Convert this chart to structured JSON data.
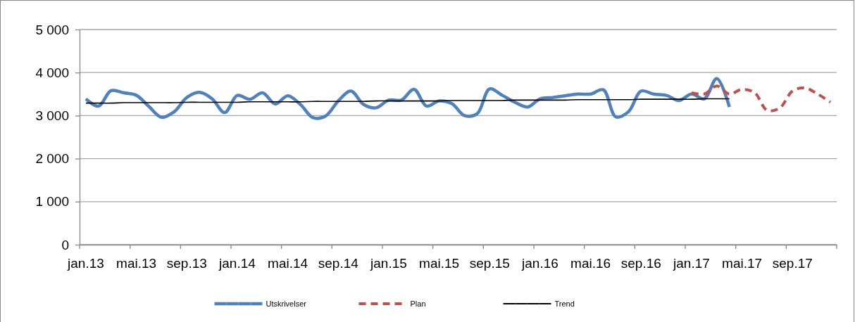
{
  "chart_data": {
    "type": "line",
    "categories": [
      "jan.13",
      null,
      null,
      null,
      "mai.13",
      null,
      null,
      null,
      "sep.13",
      null,
      null,
      null,
      "jan.14",
      null,
      null,
      null,
      "mai.14",
      null,
      null,
      null,
      "sep.14",
      null,
      null,
      null,
      "jan.15",
      null,
      null,
      null,
      "mai.15",
      null,
      null,
      null,
      "sep.15",
      null,
      null,
      null,
      "jan.16",
      null,
      null,
      null,
      "mai.16",
      null,
      null,
      null,
      "sep.16",
      null,
      null,
      null,
      "jan.17",
      null,
      null,
      null,
      "mai.17",
      null,
      null,
      null,
      "sep.17",
      null,
      null,
      null
    ],
    "ylim": [
      0,
      5000
    ],
    "yticks": [
      {
        "value": 0,
        "label": "0"
      },
      {
        "value": 1000,
        "label": "1 000"
      },
      {
        "value": 2000,
        "label": "2 000"
      },
      {
        "value": 3000,
        "label": "3 000"
      },
      {
        "value": 4000,
        "label": "4 000"
      },
      {
        "value": 5000,
        "label": "5 000"
      }
    ],
    "grid": "y",
    "legend": "bottom",
    "series": [
      {
        "name": "Utskrivelser",
        "color": "#4f81bd",
        "line_style": "solid",
        "values": [
          3390,
          3220,
          3580,
          3530,
          3470,
          3210,
          2960,
          3090,
          3420,
          3540,
          3390,
          3070,
          3470,
          3380,
          3530,
          3270,
          3460,
          3260,
          2950,
          2990,
          3340,
          3570,
          3260,
          3180,
          3360,
          3360,
          3610,
          3220,
          3340,
          3280,
          3000,
          3040,
          3620,
          3470,
          3310,
          3200,
          3390,
          3420,
          3460,
          3500,
          3500,
          3600,
          2970,
          3090,
          3570,
          3500,
          3470,
          3350,
          3500,
          3390,
          3860,
          3200,
          null,
          null,
          null,
          null,
          null,
          null,
          null,
          null
        ]
      },
      {
        "name": "Plan",
        "color": "#c0504d",
        "line_style": "dashed",
        "values": [
          null,
          null,
          null,
          null,
          null,
          null,
          null,
          null,
          null,
          null,
          null,
          null,
          null,
          null,
          null,
          null,
          null,
          null,
          null,
          null,
          null,
          null,
          null,
          null,
          null,
          null,
          null,
          null,
          null,
          null,
          null,
          null,
          null,
          null,
          null,
          null,
          null,
          null,
          null,
          null,
          null,
          null,
          null,
          null,
          null,
          null,
          null,
          null,
          3530,
          3500,
          3690,
          3500,
          3610,
          3530,
          3120,
          3180,
          3570,
          3640,
          3500,
          3310
        ]
      },
      {
        "name": "Trend",
        "color": "#000000",
        "line_style": "solid",
        "values": [
          3290,
          3290,
          3290,
          3300,
          3300,
          3300,
          3300,
          3300,
          3310,
          3310,
          3310,
          3310,
          3310,
          3320,
          3320,
          3320,
          3320,
          3320,
          3330,
          3330,
          3330,
          3330,
          3330,
          3340,
          3340,
          3340,
          3340,
          3340,
          3340,
          3350,
          3350,
          3350,
          3350,
          3350,
          3360,
          3360,
          3360,
          3360,
          3360,
          3370,
          3370,
          3370,
          3370,
          3370,
          3380,
          3380,
          3380,
          3380,
          3380,
          3390,
          3390,
          3390,
          null,
          null,
          null,
          null,
          null,
          null,
          null,
          null
        ]
      }
    ]
  }
}
